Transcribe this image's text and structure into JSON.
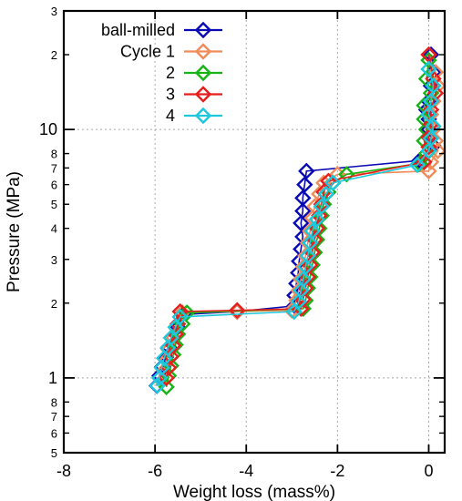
{
  "chart_data": {
    "type": "scatter",
    "title": "",
    "xlabel": "Weight loss (mass%)",
    "ylabel": "Pressure (MPa)",
    "xlim": [
      -8,
      0.35
    ],
    "ylim": [
      0.5,
      30
    ],
    "yscale": "log",
    "grid": true,
    "legend_position": "top-left",
    "x_ticks": [
      -8,
      -6,
      -4,
      -2,
      0
    ],
    "x_tick_labels": [
      "-8",
      "-6",
      "-4",
      "-2",
      "0"
    ],
    "y_major_ticks": [
      1,
      10
    ],
    "y_major_labels": [
      "1",
      "10"
    ],
    "y_minor_ticks": [
      0.5,
      0.6,
      0.7,
      0.8,
      2,
      3,
      4,
      5,
      6,
      7,
      8,
      20,
      30
    ],
    "y_minor_labels": [
      "5",
      "6",
      "7",
      "8",
      "2",
      "3",
      "4",
      "5",
      "6",
      "7",
      "8",
      "2",
      "3"
    ],
    "series": [
      {
        "name": "ball-milled",
        "color": "#0a0ab4",
        "points": [
          [
            0.05,
            20
          ],
          [
            0.1,
            17
          ],
          [
            0.05,
            15
          ],
          [
            0.0,
            13
          ],
          [
            -0.05,
            12
          ],
          [
            0.0,
            11
          ],
          [
            0.0,
            10
          ],
          [
            0.05,
            9.3
          ],
          [
            0.1,
            8.6
          ],
          [
            -0.2,
            7.5
          ],
          [
            -2.68,
            6.8
          ],
          [
            -2.72,
            6.0
          ],
          [
            -2.76,
            5.3
          ],
          [
            -2.76,
            4.7
          ],
          [
            -2.8,
            4.2
          ],
          [
            -2.76,
            3.7
          ],
          [
            -2.8,
            3.3
          ],
          [
            -2.84,
            2.95
          ],
          [
            -2.86,
            2.65
          ],
          [
            -2.9,
            2.4
          ],
          [
            -2.94,
            2.15
          ],
          [
            -2.94,
            1.95
          ],
          [
            -4.2,
            1.85
          ],
          [
            -5.4,
            1.8
          ],
          [
            -5.5,
            1.6
          ],
          [
            -5.6,
            1.45
          ],
          [
            -5.7,
            1.33
          ],
          [
            -5.76,
            1.21
          ],
          [
            -5.84,
            1.11
          ],
          [
            -5.9,
            1.02
          ],
          [
            -5.96,
            0.93
          ]
        ]
      },
      {
        "name": "Cycle 1",
        "color": "#f08c5a",
        "points": [
          [
            0.0,
            20
          ],
          [
            0.15,
            17
          ],
          [
            0.2,
            15
          ],
          [
            0.1,
            13
          ],
          [
            0.05,
            11.5
          ],
          [
            0.1,
            10
          ],
          [
            0.15,
            9
          ],
          [
            0.2,
            8.2
          ],
          [
            0.05,
            7.4
          ],
          [
            0.0,
            6.8
          ],
          [
            -2.0,
            6.6
          ],
          [
            -2.3,
            6.1
          ],
          [
            -2.4,
            5.5
          ],
          [
            -2.5,
            4.9
          ],
          [
            -2.55,
            4.4
          ],
          [
            -2.6,
            3.9
          ],
          [
            -2.65,
            3.5
          ],
          [
            -2.7,
            3.1
          ],
          [
            -2.75,
            2.8
          ],
          [
            -2.8,
            2.5
          ],
          [
            -2.85,
            2.25
          ],
          [
            -2.9,
            2.05
          ],
          [
            -3.0,
            1.87
          ],
          [
            -4.2,
            1.85
          ],
          [
            -5.4,
            1.83
          ],
          [
            -5.55,
            1.6
          ],
          [
            -5.6,
            1.45
          ],
          [
            -5.7,
            1.3
          ],
          [
            -5.75,
            1.18
          ],
          [
            -5.8,
            1.07
          ],
          [
            -5.85,
            0.97
          ]
        ]
      },
      {
        "name": "2",
        "color": "#16b416",
        "points": [
          [
            0.0,
            19
          ],
          [
            -0.05,
            16
          ],
          [
            0.05,
            14
          ],
          [
            -0.1,
            12.5
          ],
          [
            -0.1,
            11
          ],
          [
            -0.05,
            10
          ],
          [
            -0.1,
            9
          ],
          [
            -0.05,
            8
          ],
          [
            -0.2,
            7.3
          ],
          [
            -1.8,
            6.6
          ],
          [
            -2.1,
            6.1
          ],
          [
            -2.2,
            5.6
          ],
          [
            -2.3,
            5.0
          ],
          [
            -2.35,
            4.5
          ],
          [
            -2.4,
            4.0
          ],
          [
            -2.45,
            3.6
          ],
          [
            -2.5,
            3.2
          ],
          [
            -2.55,
            2.85
          ],
          [
            -2.6,
            2.55
          ],
          [
            -2.65,
            2.3
          ],
          [
            -2.7,
            2.05
          ],
          [
            -2.75,
            1.9
          ],
          [
            -5.3,
            1.83
          ],
          [
            -5.4,
            1.65
          ],
          [
            -5.5,
            1.5
          ],
          [
            -5.55,
            1.36
          ],
          [
            -5.6,
            1.24
          ],
          [
            -5.65,
            1.12
          ],
          [
            -5.7,
            1.02
          ],
          [
            -5.75,
            0.92
          ]
        ]
      },
      {
        "name": "3",
        "color": "#e61e1e",
        "points": [
          [
            0.0,
            20
          ],
          [
            0.1,
            16
          ],
          [
            0.15,
            14
          ],
          [
            0.05,
            12
          ],
          [
            0.05,
            10.5
          ],
          [
            0.0,
            9.3
          ],
          [
            0.0,
            8.5
          ],
          [
            -0.1,
            7.4
          ],
          [
            -2.2,
            6.2
          ],
          [
            -2.3,
            5.6
          ],
          [
            -2.35,
            5.0
          ],
          [
            -2.4,
            4.5
          ],
          [
            -2.45,
            4.0
          ],
          [
            -2.5,
            3.6
          ],
          [
            -2.55,
            3.2
          ],
          [
            -2.6,
            2.85
          ],
          [
            -2.65,
            2.55
          ],
          [
            -2.7,
            2.3
          ],
          [
            -2.75,
            2.07
          ],
          [
            -2.8,
            1.9
          ],
          [
            -4.2,
            1.87
          ],
          [
            -5.45,
            1.85
          ],
          [
            -5.5,
            1.65
          ],
          [
            -5.55,
            1.5
          ],
          [
            -5.6,
            1.35
          ],
          [
            -5.65,
            1.22
          ],
          [
            -5.7,
            1.1
          ],
          [
            -5.75,
            1.0
          ]
        ]
      },
      {
        "name": "4",
        "color": "#1ec8dc",
        "points": [
          [
            0.0,
            17.5
          ],
          [
            0.1,
            15
          ],
          [
            0.05,
            13
          ],
          [
            0.0,
            11.5
          ],
          [
            0.1,
            10.3
          ],
          [
            0.05,
            9.2
          ],
          [
            0.0,
            8.2
          ],
          [
            -0.25,
            7.2
          ],
          [
            -2.1,
            6.1
          ],
          [
            -2.25,
            5.5
          ],
          [
            -2.35,
            4.9
          ],
          [
            -2.45,
            4.35
          ],
          [
            -2.55,
            3.9
          ],
          [
            -2.6,
            3.5
          ],
          [
            -2.65,
            3.1
          ],
          [
            -2.7,
            2.8
          ],
          [
            -2.75,
            2.5
          ],
          [
            -2.8,
            2.25
          ],
          [
            -2.85,
            2.03
          ],
          [
            -2.95,
            1.85
          ],
          [
            -5.45,
            1.76
          ],
          [
            -5.55,
            1.6
          ],
          [
            -5.65,
            1.45
          ],
          [
            -5.72,
            1.32
          ],
          [
            -5.8,
            1.2
          ],
          [
            -5.85,
            1.1
          ],
          [
            -5.9,
            1.0
          ],
          [
            -5.95,
            0.93
          ]
        ]
      }
    ]
  }
}
